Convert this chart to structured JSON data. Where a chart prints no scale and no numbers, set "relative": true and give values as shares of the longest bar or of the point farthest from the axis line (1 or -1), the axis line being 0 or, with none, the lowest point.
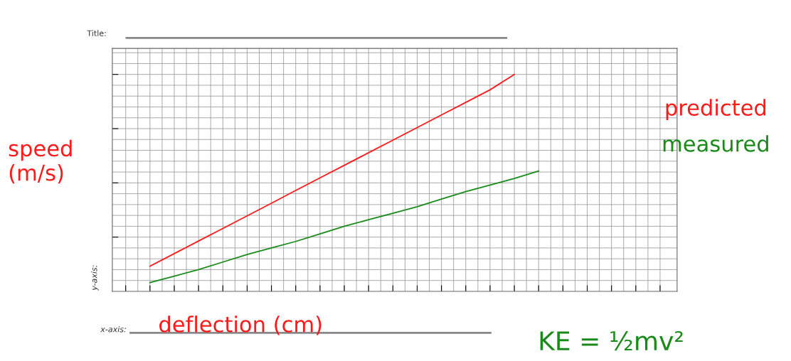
{
  "chart_data": {
    "type": "line",
    "title": "Title:",
    "xlabel": "x-axis:",
    "ylabel": "y-axis:",
    "relative": true,
    "grid": true,
    "marker": "none",
    "line_style": "solid",
    "tick_labels": false,
    "categories": [
      null,
      null,
      null,
      null,
      null,
      null,
      null,
      null,
      null,
      null,
      null,
      null,
      null,
      null,
      null,
      null,
      null,
      null,
      null,
      null,
      null,
      null,
      null
    ],
    "series": [
      {
        "name": "predicted",
        "color": "#ff1a1a",
        "values": [
          null,
          0.116,
          0.174,
          0.232,
          0.29,
          0.348,
          0.406,
          0.465,
          0.523,
          0.581,
          0.639,
          0.697,
          0.755,
          0.813,
          0.871,
          0.929,
          1.0,
          null,
          null,
          null,
          null,
          null,
          null
        ]
      },
      {
        "name": "measured",
        "color": "#1a8a1a",
        "values": [
          null,
          0.04,
          0.07,
          0.1,
          0.135,
          0.17,
          0.2,
          0.23,
          0.265,
          0.3,
          0.33,
          0.36,
          0.39,
          0.425,
          0.46,
          0.49,
          0.52,
          0.555,
          null,
          null,
          null,
          null,
          null
        ]
      }
    ],
    "annotations": [
      "speed (m/s)",
      "deflection (cm)",
      "KE = ½mv²"
    ]
  }
}
